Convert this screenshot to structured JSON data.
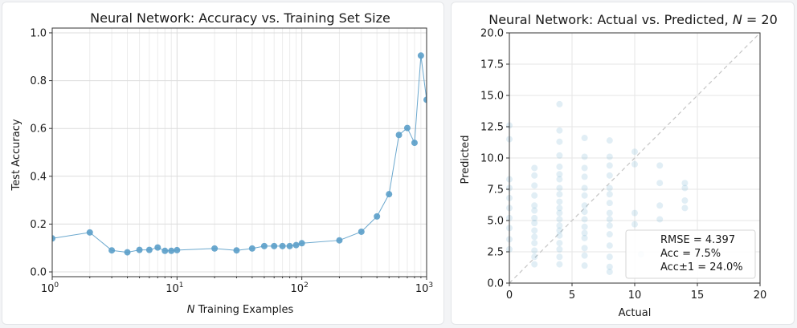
{
  "chart_data": [
    {
      "type": "line",
      "title": "Neural Network: Accuracy vs. Training Set Size",
      "xlabel_italic": "N",
      "xlabel_rest": " Training Examples",
      "ylabel": "Test Accuracy",
      "xscale": "log",
      "xlim": [
        1,
        1000
      ],
      "ylim": [
        -0.02,
        1.02
      ],
      "grid": true,
      "color": "#5b9ec9",
      "xticks": [
        {
          "value": 1,
          "base": "10",
          "exp": "0"
        },
        {
          "value": 10,
          "base": "10",
          "exp": "1"
        },
        {
          "value": 100,
          "base": "10",
          "exp": "2"
        },
        {
          "value": 1000,
          "base": "10",
          "exp": "3"
        }
      ],
      "yticks": [
        {
          "value": 0.0,
          "label": "0.0"
        },
        {
          "value": 0.2,
          "label": "0.2"
        },
        {
          "value": 0.4,
          "label": "0.4"
        },
        {
          "value": 0.6,
          "label": "0.6"
        },
        {
          "value": 0.8,
          "label": "0.8"
        },
        {
          "value": 1.0,
          "label": "1.0"
        }
      ],
      "series": [
        {
          "x": [
            1,
            2,
            3,
            4,
            5,
            6,
            7,
            8,
            9,
            10,
            20,
            30,
            40,
            50,
            60,
            70,
            80,
            90,
            100,
            200,
            300,
            400,
            500,
            600,
            700,
            800,
            900,
            1000
          ],
          "y": [
            0.14,
            0.165,
            0.09,
            0.082,
            0.092,
            0.092,
            0.102,
            0.088,
            0.088,
            0.091,
            0.098,
            0.09,
            0.098,
            0.108,
            0.108,
            0.108,
            0.108,
            0.112,
            0.12,
            0.132,
            0.168,
            0.232,
            0.325,
            0.573,
            0.602,
            0.54,
            0.905,
            0.72
          ]
        }
      ]
    },
    {
      "type": "scatter",
      "title_prefix": "Neural Network: Actual vs. Predicted, ",
      "title_var": "N",
      "title_suffix": " = 20",
      "xlabel": "Actual",
      "ylabel": "Predicted",
      "xlim": [
        0,
        20
      ],
      "ylim": [
        0,
        20
      ],
      "grid": true,
      "color": "#5b9ec9",
      "diagonal_color": "#c4c4c4",
      "legend_placement": "bottom-right",
      "xticks": [
        {
          "value": 0,
          "label": "0"
        },
        {
          "value": 5,
          "label": "5"
        },
        {
          "value": 10,
          "label": "10"
        },
        {
          "value": 15,
          "label": "15"
        },
        {
          "value": 20,
          "label": "20"
        }
      ],
      "yticks": [
        {
          "value": 0,
          "label": "0.0"
        },
        {
          "value": 2.5,
          "label": "2.5"
        },
        {
          "value": 5,
          "label": "5.0"
        },
        {
          "value": 7.5,
          "label": "7.5"
        },
        {
          "value": 10,
          "label": "10.0"
        },
        {
          "value": 12.5,
          "label": "12.5"
        },
        {
          "value": 15,
          "label": "15.0"
        },
        {
          "value": 17.5,
          "label": "17.5"
        },
        {
          "value": 20,
          "label": "20.0"
        }
      ],
      "stats": [
        "RMSE = 4.397",
        "Acc = 7.5%",
        "Acc±1 = 24.0%"
      ],
      "points": [
        [
          0,
          12.6
        ],
        [
          0,
          11.5
        ],
        [
          0,
          8.3
        ],
        [
          0,
          7.6
        ],
        [
          0,
          6.8
        ],
        [
          0,
          6.0
        ],
        [
          0,
          5.2
        ],
        [
          0,
          4.4
        ],
        [
          0,
          3.5
        ],
        [
          0,
          2.7
        ],
        [
          2,
          9.2
        ],
        [
          2,
          8.6
        ],
        [
          2,
          7.8
        ],
        [
          2,
          7.0
        ],
        [
          2,
          6.2
        ],
        [
          2,
          5.8
        ],
        [
          2,
          5.2
        ],
        [
          2,
          4.8
        ],
        [
          2,
          4.2
        ],
        [
          2,
          3.7
        ],
        [
          2,
          3.2
        ],
        [
          2,
          2.6
        ],
        [
          2,
          2.1
        ],
        [
          2,
          1.5
        ],
        [
          4,
          14.3
        ],
        [
          4,
          12.2
        ],
        [
          4,
          11.3
        ],
        [
          4,
          10.2
        ],
        [
          4,
          9.3
        ],
        [
          4,
          8.7
        ],
        [
          4,
          8.3
        ],
        [
          4,
          7.6
        ],
        [
          4,
          7.1
        ],
        [
          4,
          6.5
        ],
        [
          4,
          6.0
        ],
        [
          4,
          5.6
        ],
        [
          4,
          5.1
        ],
        [
          4,
          4.6
        ],
        [
          4,
          4.2
        ],
        [
          4,
          3.8
        ],
        [
          4,
          3.2
        ],
        [
          4,
          2.7
        ],
        [
          4,
          2.1
        ],
        [
          4,
          1.5
        ],
        [
          6,
          11.6
        ],
        [
          6,
          10.1
        ],
        [
          6,
          9.2
        ],
        [
          6,
          8.5
        ],
        [
          6,
          7.6
        ],
        [
          6,
          7.0
        ],
        [
          6,
          6.2
        ],
        [
          6,
          5.7
        ],
        [
          6,
          5.1
        ],
        [
          6,
          4.5
        ],
        [
          6,
          4.0
        ],
        [
          6,
          3.6
        ],
        [
          6,
          2.8
        ],
        [
          6,
          2.2
        ],
        [
          6,
          1.4
        ],
        [
          8,
          11.4
        ],
        [
          8,
          10.1
        ],
        [
          8,
          9.4
        ],
        [
          8,
          8.6
        ],
        [
          8,
          7.6
        ],
        [
          8,
          7.1
        ],
        [
          8,
          6.4
        ],
        [
          8,
          5.6
        ],
        [
          8,
          5.1
        ],
        [
          8,
          4.6
        ],
        [
          8,
          3.9
        ],
        [
          8,
          3.0
        ],
        [
          8,
          2.1
        ],
        [
          8,
          1.3
        ],
        [
          8,
          0.9
        ],
        [
          10,
          10.5
        ],
        [
          10,
          9.5
        ],
        [
          10,
          5.6
        ],
        [
          10,
          4.7
        ],
        [
          10.5,
          2.3
        ],
        [
          12,
          9.4
        ],
        [
          12,
          8.0
        ],
        [
          12,
          6.2
        ],
        [
          12,
          5.1
        ],
        [
          14,
          8.0
        ],
        [
          14,
          7.6
        ],
        [
          14,
          6.6
        ],
        [
          14,
          6.0
        ]
      ]
    }
  ]
}
